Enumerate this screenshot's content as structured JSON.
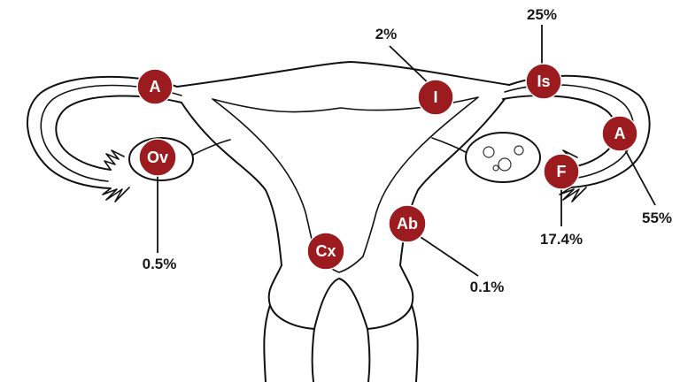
{
  "colors": {
    "marker_fill": "#9b1b1e",
    "marker_text": "#ffffff",
    "outline": "#111111",
    "background": "#ffffff"
  },
  "markers": [
    {
      "id": "ampulla-left",
      "label": "A",
      "percentage": ""
    },
    {
      "id": "ovary",
      "label": "Ov",
      "percentage": "0.5%"
    },
    {
      "id": "interstitial",
      "label": "I",
      "percentage": "2%"
    },
    {
      "id": "isthmus",
      "label": "Is",
      "percentage": "25%"
    },
    {
      "id": "ampulla-right",
      "label": "A",
      "percentage": "55%"
    },
    {
      "id": "fimbria",
      "label": "F",
      "percentage": "17.4%"
    },
    {
      "id": "cervix",
      "label": "Cx",
      "percentage": ""
    },
    {
      "id": "abdominal",
      "label": "Ab",
      "percentage": "0.1%"
    }
  ]
}
